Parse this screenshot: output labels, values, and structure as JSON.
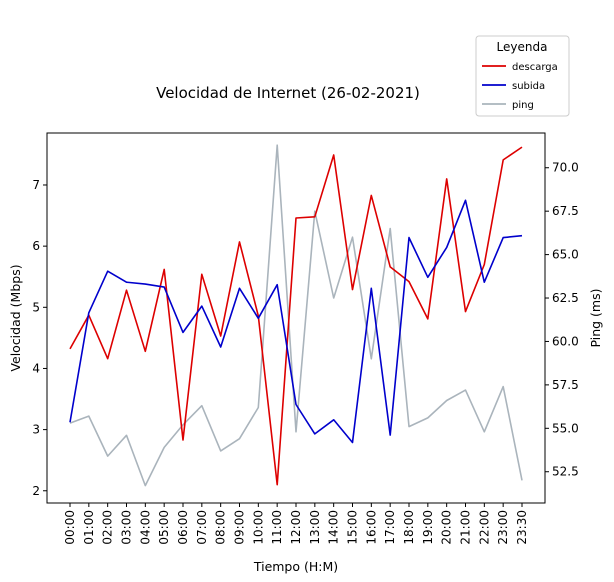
{
  "chart_data": {
    "type": "line",
    "title": "Velocidad de Internet (26-02-2021)",
    "xlabel": "Tiempo (H:M)",
    "ylabel_left": "Velocidad (Mbps)",
    "ylabel_right": "Ping (ms)",
    "ylim_left": [
      1.8,
      7.85
    ],
    "ylim_right": [
      50.7,
      72.0
    ],
    "yticks_left": [
      2,
      3,
      4,
      5,
      6,
      7
    ],
    "yticks_right": [
      "52.5",
      "55.0",
      "57.5",
      "60.0",
      "62.5",
      "65.0",
      "67.5",
      "70.0"
    ],
    "categories": [
      "00:00",
      "01:00",
      "02:00",
      "03:00",
      "04:00",
      "05:00",
      "06:00",
      "07:00",
      "08:00",
      "09:00",
      "10:00",
      "11:00",
      "12:00",
      "13:00",
      "14:00",
      "15:00",
      "16:00",
      "17:00",
      "18:00",
      "19:00",
      "20:00",
      "21:00",
      "22:00",
      "23:00",
      "23:30"
    ],
    "legend": {
      "title": "Leyenda",
      "placement": "top-right-outside"
    },
    "series": [
      {
        "name": "descarga",
        "axis": "left",
        "color": "#dd0000",
        "values": [
          4.32,
          4.87,
          4.16,
          5.28,
          4.28,
          5.62,
          2.83,
          5.54,
          4.53,
          6.07,
          4.86,
          2.1,
          6.46,
          6.48,
          7.49,
          5.29,
          6.83,
          5.66,
          5.42,
          4.81,
          7.1,
          4.93,
          5.7,
          7.41,
          7.62
        ]
      },
      {
        "name": "subida",
        "axis": "left",
        "color": "#0000cc",
        "values": [
          3.12,
          4.91,
          5.59,
          5.41,
          5.38,
          5.33,
          4.59,
          5.02,
          4.35,
          5.31,
          4.82,
          5.37,
          3.41,
          2.93,
          3.16,
          2.79,
          5.31,
          2.91,
          6.14,
          5.49,
          5.98,
          6.75,
          5.41,
          6.14,
          6.17
        ]
      },
      {
        "name": "ping",
        "axis": "right",
        "color": "#aab4bc",
        "values": [
          55.3,
          55.7,
          53.4,
          54.6,
          51.7,
          53.9,
          55.2,
          56.3,
          53.7,
          54.4,
          56.2,
          71.3,
          54.8,
          67.5,
          62.5,
          66.0,
          59.0,
          66.5,
          55.1,
          55.6,
          56.6,
          57.2,
          54.8,
          57.4,
          52.0
        ]
      }
    ]
  }
}
